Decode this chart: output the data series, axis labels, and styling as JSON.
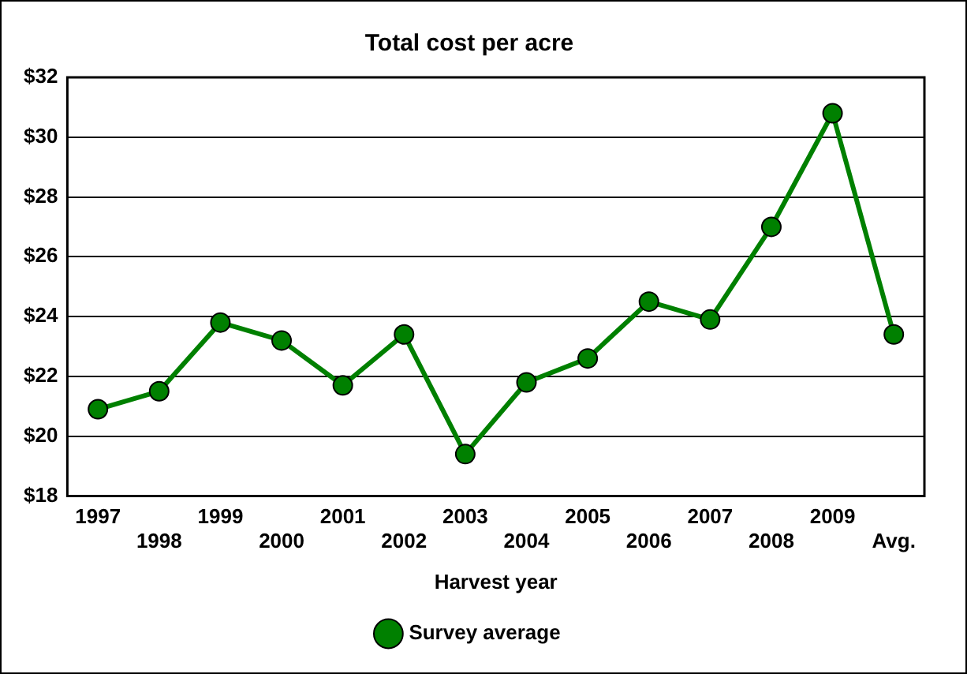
{
  "chart_data": {
    "type": "line",
    "title": "Total cost per acre",
    "xlabel": "Harvest year",
    "categories": [
      "1997",
      "1998",
      "1999",
      "2000",
      "2001",
      "2002",
      "2003",
      "2004",
      "2005",
      "2006",
      "2007",
      "2008",
      "2009",
      "Avg."
    ],
    "series": [
      {
        "name": "Survey average",
        "color": "#008000",
        "values": [
          20.9,
          21.5,
          23.8,
          23.2,
          21.7,
          23.4,
          19.4,
          21.8,
          22.6,
          24.5,
          23.9,
          27.0,
          30.8,
          23.4
        ]
      }
    ],
    "ylim": [
      18,
      32
    ],
    "yticks": [
      {
        "value": 18,
        "label": "$18"
      },
      {
        "value": 20,
        "label": "$20"
      },
      {
        "value": 22,
        "label": "$22"
      },
      {
        "value": 24,
        "label": "$24"
      },
      {
        "value": 26,
        "label": "$26"
      },
      {
        "value": 28,
        "label": "$28"
      },
      {
        "value": 30,
        "label": "$30"
      },
      {
        "value": 32,
        "label": "$32"
      }
    ],
    "grid": "y",
    "legend": "bottom",
    "marker": "circle",
    "line_style": "solid"
  }
}
